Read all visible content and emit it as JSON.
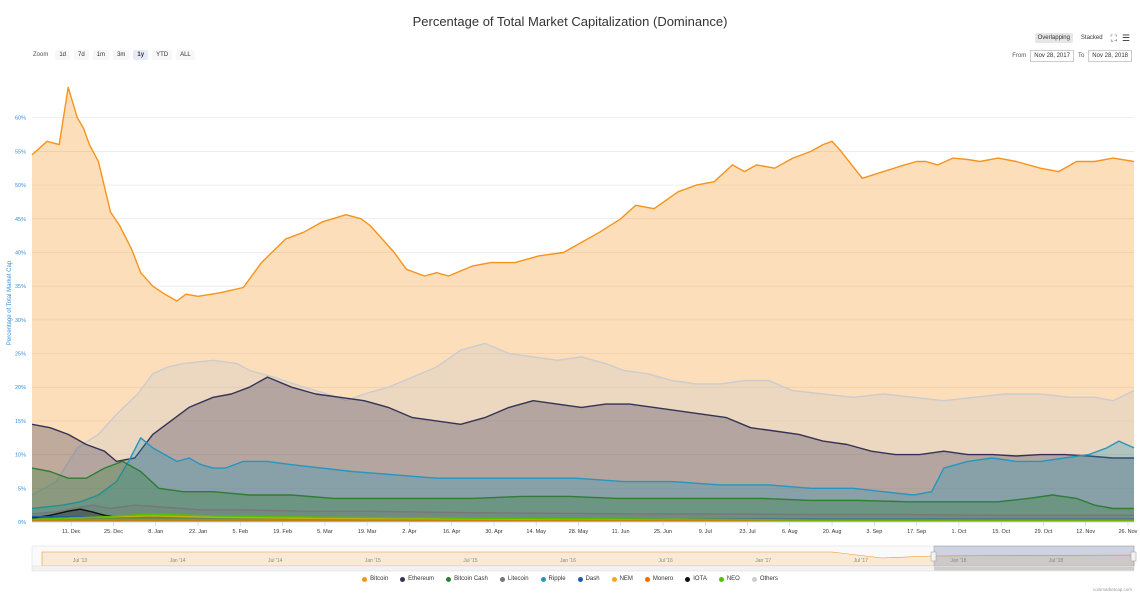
{
  "title": "Percentage of Total Market Capitalization (Dominance)",
  "zoom": {
    "label": "Zoom",
    "buttons": [
      "1d",
      "7d",
      "1m",
      "3m",
      "1y",
      "YTD",
      "ALL"
    ],
    "active": "1y"
  },
  "mode": {
    "overlapping": "Overlapping",
    "stacked": "Stacked"
  },
  "range": {
    "from_label": "From",
    "from": "Nov 28, 2017",
    "to_label": "To",
    "to": "Nov 28, 2018"
  },
  "credit": "coinmarketcap.com",
  "colors": {
    "Bitcoin": "#f7931a",
    "Ethereum": "#333355",
    "Bitcoin Cash": "#2f7d32",
    "Litecoin": "#777777",
    "Ripple": "#2596be",
    "Dash": "#1c5aa8",
    "NEM": "#f5a623",
    "Monero": "#ff6600",
    "IOTA": "#111111",
    "NEO": "#58bf00",
    "Others": "#cccccc"
  },
  "chart_data": {
    "type": "area",
    "title": "Percentage of Total Market Capitalization (Dominance)",
    "ylabel": "Percentage of Total Market Cap",
    "ylim": [
      0,
      65
    ],
    "yticks": [
      0,
      5,
      10,
      15,
      20,
      25,
      30,
      35,
      40,
      45,
      50,
      55,
      60
    ],
    "ytick_labels": [
      "0%",
      "5%",
      "10%",
      "15%",
      "20%",
      "25%",
      "30%",
      "35%",
      "40%",
      "45%",
      "50%",
      "55%",
      "60%"
    ],
    "xlim": [
      0,
      365
    ],
    "xticks": [
      13,
      27,
      41,
      55,
      69,
      83,
      97,
      111,
      125,
      139,
      153,
      167,
      181,
      195,
      209,
      223,
      237,
      251,
      265,
      279,
      293,
      307,
      321,
      335,
      349,
      363
    ],
    "xtick_labels": [
      "11. Dec",
      "25. Dec",
      "8. Jan",
      "22. Jan",
      "5. Feb",
      "19. Feb",
      "5. Mar",
      "19. Mar",
      "2. Apr",
      "16. Apr",
      "30. Apr",
      "14. May",
      "28. May",
      "11. Jun",
      "25. Jun",
      "9. Jul",
      "23. Jul",
      "6. Aug",
      "20. Aug",
      "3. Sep",
      "17. Sep",
      "1. Oct",
      "15. Oct",
      "29. Oct",
      "12. Nov",
      "26. Nov"
    ],
    "legend": [
      "Bitcoin",
      "Ethereum",
      "Bitcoin Cash",
      "Litecoin",
      "Ripple",
      "Dash",
      "NEM",
      "Monero",
      "IOTA",
      "NEO",
      "Others"
    ],
    "series": [
      {
        "name": "Bitcoin",
        "x": [
          0,
          5,
          9,
          12,
          15,
          17,
          19,
          22,
          26,
          29,
          33,
          36,
          40,
          44,
          48,
          51,
          55,
          62,
          70,
          76,
          84,
          90,
          96,
          104,
          109,
          112,
          120,
          124,
          130,
          134,
          138,
          146,
          152,
          160,
          168,
          176,
          182,
          188,
          195,
          200,
          206,
          214,
          220,
          226,
          232,
          236,
          240,
          246,
          252,
          258,
          262,
          265,
          268,
          275,
          282,
          289,
          293,
          296,
          300,
          305,
          310,
          314,
          320,
          326,
          334,
          340,
          346,
          352,
          358,
          365
        ],
        "y": [
          54.5,
          56.5,
          56,
          64.5,
          60,
          58.5,
          56,
          53.5,
          46,
          44,
          40.5,
          37,
          35,
          33.8,
          32.8,
          33.8,
          33.5,
          34,
          34.8,
          38.5,
          42,
          43,
          44.5,
          45.6,
          45,
          44,
          40,
          37.5,
          36.5,
          37,
          36.5,
          38,
          38.5,
          38.5,
          39.5,
          40,
          41.5,
          43,
          45,
          47,
          46.5,
          49,
          50,
          50.5,
          53,
          52,
          53,
          52.5,
          54,
          55,
          56,
          56.5,
          55,
          51,
          52,
          53,
          53.5,
          53.5,
          53,
          54,
          53.8,
          53.5,
          54,
          53.5,
          52.5,
          52,
          53.5,
          53.5,
          54,
          53.5
        ]
      },
      {
        "name": "Others",
        "x": [
          0,
          8,
          15,
          22,
          28,
          35,
          40,
          45,
          50,
          60,
          68,
          72,
          80,
          90,
          98,
          104,
          110,
          118,
          126,
          134,
          142,
          150,
          158,
          166,
          174,
          182,
          190,
          196,
          204,
          212,
          220,
          228,
          236,
          244,
          252,
          262,
          272,
          282,
          292,
          302,
          312,
          322,
          334,
          344,
          352,
          358,
          365
        ],
        "y": [
          4,
          6,
          11,
          13,
          16,
          19,
          22,
          23,
          23.5,
          24,
          23.5,
          22.5,
          21.5,
          20,
          19,
          18,
          19,
          20,
          21.5,
          23,
          25.5,
          26.5,
          25,
          24.5,
          24,
          24.5,
          23.5,
          22.5,
          22,
          21,
          20.5,
          20.5,
          21,
          21,
          19.5,
          19,
          18.5,
          19,
          18.5,
          18,
          18.5,
          19,
          19,
          18.5,
          18.5,
          18,
          19.5
        ]
      },
      {
        "name": "Ethereum",
        "x": [
          0,
          6,
          12,
          18,
          24,
          28,
          34,
          40,
          46,
          52,
          60,
          66,
          72,
          78,
          86,
          94,
          102,
          110,
          118,
          126,
          134,
          142,
          150,
          158,
          166,
          174,
          182,
          190,
          198,
          206,
          214,
          222,
          230,
          238,
          246,
          254,
          262,
          270,
          278,
          286,
          294,
          302,
          310,
          318,
          326,
          334,
          342,
          350,
          358,
          365
        ],
        "y": [
          14.5,
          14,
          13,
          11.5,
          10.5,
          9,
          9.5,
          13,
          15,
          17,
          18.5,
          19,
          20,
          21.5,
          20,
          19,
          18.5,
          18,
          17,
          15.5,
          15,
          14.5,
          15.5,
          17,
          18,
          17.5,
          17,
          17.5,
          17.5,
          17,
          16.5,
          16,
          15.5,
          14,
          13.5,
          13,
          12,
          11.5,
          10.5,
          10,
          10,
          10.5,
          10,
          10,
          9.8,
          10,
          10,
          9.8,
          9.5,
          9.5
        ]
      },
      {
        "name": "Ripple",
        "x": [
          0,
          10,
          16,
          22,
          28,
          32,
          36,
          40,
          44,
          48,
          52,
          56,
          60,
          64,
          70,
          78,
          86,
          96,
          106,
          120,
          134,
          150,
          166,
          180,
          196,
          212,
          228,
          244,
          258,
          272,
          282,
          292,
          298,
          302,
          310,
          318,
          326,
          334,
          342,
          350,
          356,
          360,
          365
        ],
        "y": [
          2,
          2.5,
          3,
          4,
          6,
          9,
          12.5,
          11,
          10,
          9,
          9.5,
          8.5,
          8,
          8,
          9,
          9,
          8.5,
          8,
          7.5,
          7,
          6.5,
          6.5,
          6.5,
          6.5,
          6,
          6,
          5.5,
          5.5,
          5,
          5,
          4.5,
          4,
          4.5,
          8,
          9,
          9.5,
          9,
          9,
          9.5,
          10,
          11,
          12,
          11
        ]
      },
      {
        "name": "Bitcoin Cash",
        "x": [
          0,
          6,
          12,
          18,
          24,
          30,
          36,
          42,
          50,
          60,
          72,
          86,
          100,
          116,
          130,
          146,
          162,
          178,
          194,
          210,
          226,
          242,
          258,
          274,
          290,
          306,
          320,
          330,
          338,
          346,
          352,
          358,
          365
        ],
        "y": [
          8,
          7.5,
          6.5,
          6.5,
          8,
          9,
          7.5,
          5,
          4.5,
          4.5,
          4,
          4,
          3.5,
          3.5,
          3.5,
          3.5,
          3.8,
          3.8,
          3.5,
          3.5,
          3.5,
          3.5,
          3.2,
          3.2,
          3,
          3,
          3,
          3.5,
          4,
          3.5,
          2.5,
          2,
          2
        ]
      },
      {
        "name": "Litecoin",
        "x": [
          0,
          8,
          14,
          20,
          26,
          34,
          44,
          56,
          70,
          90,
          110,
          140,
          170,
          200,
          230,
          260,
          290,
          320,
          350,
          365
        ],
        "y": [
          1.2,
          1.5,
          2,
          2.5,
          2,
          2.5,
          2.2,
          1.8,
          1.8,
          1.6,
          1.6,
          1.4,
          1.3,
          1.2,
          1.2,
          1.1,
          1.1,
          1,
          1,
          1
        ]
      },
      {
        "name": "IOTA",
        "x": [
          0,
          6,
          12,
          16,
          20,
          24,
          28,
          32,
          40,
          50,
          70,
          100,
          140,
          180,
          220,
          260,
          300,
          340,
          365
        ],
        "y": [
          0.6,
          1,
          1.6,
          1.9,
          1.5,
          1,
          0.8,
          0.9,
          0.7,
          0.7,
          0.6,
          0.5,
          0.5,
          0.4,
          0.4,
          0.3,
          0.3,
          0.3,
          0.3
        ]
      },
      {
        "name": "Dash",
        "x": [
          0,
          30,
          60,
          100,
          140,
          180,
          220,
          260,
          300,
          340,
          365
        ],
        "y": [
          0.8,
          0.7,
          0.6,
          0.6,
          0.5,
          0.5,
          0.4,
          0.4,
          0.4,
          0.4,
          0.4
        ]
      },
      {
        "name": "NEM",
        "x": [
          0,
          20,
          40,
          60,
          100,
          140,
          180,
          220,
          260,
          300,
          340,
          365
        ],
        "y": [
          0.4,
          0.7,
          0.9,
          0.7,
          0.5,
          0.4,
          0.3,
          0.3,
          0.2,
          0.2,
          0.2,
          0.2
        ]
      },
      {
        "name": "Monero",
        "x": [
          0,
          60,
          120,
          180,
          240,
          300,
          365
        ],
        "y": [
          0.3,
          0.3,
          0.3,
          0.2,
          0.2,
          0.2,
          0.2
        ]
      },
      {
        "name": "NEO",
        "x": [
          0,
          20,
          40,
          60,
          80,
          100,
          140,
          180,
          220,
          260,
          300,
          365
        ],
        "y": [
          0.4,
          0.7,
          1.2,
          0.9,
          0.8,
          0.7,
          0.6,
          0.5,
          0.4,
          0.3,
          0.3,
          0.3
        ]
      }
    ],
    "navigator": {
      "labels": [
        "Jul '13",
        "Jan '14",
        "Jul '14",
        "Jan '15",
        "Jul '15",
        "Jan '16",
        "Jul '16",
        "Jan '17",
        "Jul '17",
        "Jan '18",
        "Jul '18"
      ]
    }
  }
}
